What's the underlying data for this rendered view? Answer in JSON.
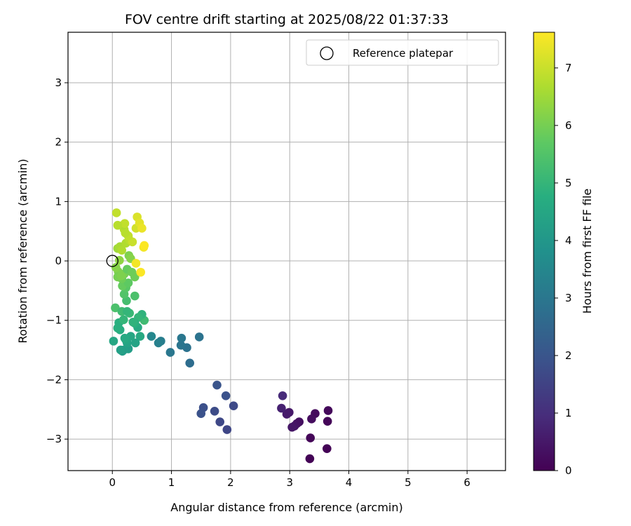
{
  "chart_data": {
    "type": "scatter",
    "title": "FOV centre drift starting at 2025/08/22 01:37:33",
    "xlabel": "Angular distance from reference (arcmin)",
    "ylabel": "Rotation from reference (arcmin)",
    "xlim": [
      -0.75,
      6.65
    ],
    "ylim": [
      -3.53,
      3.85
    ],
    "xticks": [
      0,
      1,
      2,
      3,
      4,
      5,
      6
    ],
    "yticks": [
      -3,
      -2,
      -1,
      0,
      1,
      2,
      3
    ],
    "grid": true,
    "legend": {
      "position": "top-right",
      "entries": [
        "Reference platepar"
      ]
    },
    "reference_point": {
      "x": 0,
      "y": 0,
      "marker": "open-circle"
    },
    "colorbar": {
      "label": "Hours from first FF file",
      "colormap": "viridis",
      "range": [
        0,
        7.62
      ],
      "ticks": [
        0,
        1,
        2,
        3,
        4,
        5,
        6,
        7
      ]
    },
    "points": [
      {
        "x": 3.65,
        "y": -2.52,
        "c": 0.15
      },
      {
        "x": 3.64,
        "y": -2.7,
        "c": 0.1
      },
      {
        "x": 3.63,
        "y": -3.16,
        "c": 0.05
      },
      {
        "x": 3.43,
        "y": -2.57,
        "c": 0.2
      },
      {
        "x": 3.37,
        "y": -2.66,
        "c": 0.25
      },
      {
        "x": 3.35,
        "y": -2.98,
        "c": 0.1
      },
      {
        "x": 3.34,
        "y": -3.33,
        "c": 0.05
      },
      {
        "x": 3.16,
        "y": -2.71,
        "c": 0.3
      },
      {
        "x": 3.12,
        "y": -2.74,
        "c": 0.35
      },
      {
        "x": 3.08,
        "y": -2.78,
        "c": 0.4
      },
      {
        "x": 3.04,
        "y": -2.8,
        "c": 0.45
      },
      {
        "x": 2.99,
        "y": -2.55,
        "c": 0.5
      },
      {
        "x": 2.95,
        "y": -2.58,
        "c": 0.55
      },
      {
        "x": 2.86,
        "y": -2.48,
        "c": 0.7
      },
      {
        "x": 2.88,
        "y": -2.27,
        "c": 0.9
      },
      {
        "x": 2.05,
        "y": -2.44,
        "c": 1.7
      },
      {
        "x": 1.94,
        "y": -2.84,
        "c": 1.6
      },
      {
        "x": 1.92,
        "y": -2.27,
        "c": 1.9
      },
      {
        "x": 1.82,
        "y": -2.71,
        "c": 1.65
      },
      {
        "x": 1.77,
        "y": -2.09,
        "c": 2.0
      },
      {
        "x": 1.73,
        "y": -2.53,
        "c": 1.75
      },
      {
        "x": 1.54,
        "y": -2.47,
        "c": 1.85
      },
      {
        "x": 1.5,
        "y": -2.57,
        "c": 1.9
      },
      {
        "x": 1.47,
        "y": -1.28,
        "c": 2.9
      },
      {
        "x": 1.31,
        "y": -1.72,
        "c": 2.7
      },
      {
        "x": 1.26,
        "y": -1.46,
        "c": 2.85
      },
      {
        "x": 1.17,
        "y": -1.3,
        "c": 3.0
      },
      {
        "x": 1.16,
        "y": -1.42,
        "c": 2.95
      },
      {
        "x": 0.98,
        "y": -1.54,
        "c": 3.0
      },
      {
        "x": 0.82,
        "y": -1.35,
        "c": 3.2
      },
      {
        "x": 0.78,
        "y": -1.38,
        "c": 3.3
      },
      {
        "x": 0.66,
        "y": -1.27,
        "c": 3.5
      },
      {
        "x": 0.54,
        "y": -1.0,
        "c": 5.2
      },
      {
        "x": 0.5,
        "y": -0.9,
        "c": 4.9
      },
      {
        "x": 0.47,
        "y": -1.27,
        "c": 4.6
      },
      {
        "x": 0.43,
        "y": -1.12,
        "c": 4.6
      },
      {
        "x": 0.44,
        "y": -0.95,
        "c": 5.0
      },
      {
        "x": 0.39,
        "y": -1.38,
        "c": 4.4
      },
      {
        "x": 0.38,
        "y": -1.05,
        "c": 4.8
      },
      {
        "x": 0.35,
        "y": -1.03,
        "c": 4.9
      },
      {
        "x": 0.31,
        "y": -1.27,
        "c": 4.5
      },
      {
        "x": 0.29,
        "y": -0.88,
        "c": 5.1
      },
      {
        "x": 0.27,
        "y": -1.48,
        "c": 4.2
      },
      {
        "x": 0.25,
        "y": -1.38,
        "c": 4.4
      },
      {
        "x": 0.23,
        "y": -1.33,
        "c": 4.5
      },
      {
        "x": 0.21,
        "y": -1.3,
        "c": 4.6
      },
      {
        "x": 0.19,
        "y": -1.5,
        "c": 4.3
      },
      {
        "x": 0.17,
        "y": -1.52,
        "c": 4.2
      },
      {
        "x": 0.14,
        "y": -1.5,
        "c": 4.3
      },
      {
        "x": 0.13,
        "y": -1.16,
        "c": 4.7
      },
      {
        "x": 0.11,
        "y": -1.04,
        "c": 4.8
      },
      {
        "x": 0.09,
        "y": -1.13,
        "c": 4.8
      },
      {
        "x": 0.02,
        "y": -1.35,
        "c": 4.5
      },
      {
        "x": 0.05,
        "y": -0.79,
        "c": 5.4
      },
      {
        "x": 0.16,
        "y": -0.85,
        "c": 5.2
      },
      {
        "x": 0.25,
        "y": -0.85,
        "c": 5.0
      },
      {
        "x": 0.19,
        "y": -0.99,
        "c": 5.0
      },
      {
        "x": 0.24,
        "y": -0.67,
        "c": 5.3
      },
      {
        "x": 0.2,
        "y": -0.56,
        "c": 5.5
      },
      {
        "x": 0.38,
        "y": -0.59,
        "c": 5.4
      },
      {
        "x": 0.23,
        "y": -0.45,
        "c": 5.6
      },
      {
        "x": 0.17,
        "y": -0.42,
        "c": 5.8
      },
      {
        "x": 0.27,
        "y": -0.37,
        "c": 5.7
      },
      {
        "x": 0.16,
        "y": -0.3,
        "c": 5.9
      },
      {
        "x": 0.2,
        "y": -0.22,
        "c": 6.0
      },
      {
        "x": 0.25,
        "y": -0.14,
        "c": 5.8
      },
      {
        "x": 0.33,
        "y": -0.19,
        "c": 5.9
      },
      {
        "x": 0.38,
        "y": -0.27,
        "c": 5.9
      },
      {
        "x": 0.1,
        "y": -0.18,
        "c": 6.1
      },
      {
        "x": 0.06,
        "y": -0.11,
        "c": 6.2
      },
      {
        "x": 0.09,
        "y": -0.27,
        "c": 6.0
      },
      {
        "x": 0.15,
        "y": -0.25,
        "c": 6.1
      },
      {
        "x": 0.12,
        "y": 0.01,
        "c": 6.3
      },
      {
        "x": 0.28,
        "y": 0.09,
        "c": 6.1
      },
      {
        "x": 0.31,
        "y": 0.04,
        "c": 6.2
      },
      {
        "x": 0.09,
        "y": 0.21,
        "c": 6.5
      },
      {
        "x": 0.13,
        "y": 0.24,
        "c": 6.6
      },
      {
        "x": 0.16,
        "y": 0.18,
        "c": 6.7
      },
      {
        "x": 0.23,
        "y": 0.3,
        "c": 6.7
      },
      {
        "x": 0.29,
        "y": 0.35,
        "c": 6.8
      },
      {
        "x": 0.34,
        "y": 0.32,
        "c": 7.0
      },
      {
        "x": 0.27,
        "y": 0.42,
        "c": 6.9
      },
      {
        "x": 0.22,
        "y": 0.47,
        "c": 6.8
      },
      {
        "x": 0.2,
        "y": 0.53,
        "c": 6.8
      },
      {
        "x": 0.18,
        "y": 0.6,
        "c": 6.7
      },
      {
        "x": 0.21,
        "y": 0.63,
        "c": 6.9
      },
      {
        "x": 0.09,
        "y": 0.6,
        "c": 6.8
      },
      {
        "x": 0.07,
        "y": 0.81,
        "c": 6.9
      },
      {
        "x": 0.4,
        "y": 0.55,
        "c": 7.1
      },
      {
        "x": 0.42,
        "y": 0.74,
        "c": 7.2
      },
      {
        "x": 0.46,
        "y": 0.64,
        "c": 7.3
      },
      {
        "x": 0.5,
        "y": 0.55,
        "c": 7.4
      },
      {
        "x": 0.53,
        "y": 0.23,
        "c": 7.5
      },
      {
        "x": 0.54,
        "y": 0.26,
        "c": 7.6
      },
      {
        "x": 0.4,
        "y": -0.04,
        "c": 7.5
      },
      {
        "x": 0.48,
        "y": -0.19,
        "c": 7.6
      }
    ]
  }
}
